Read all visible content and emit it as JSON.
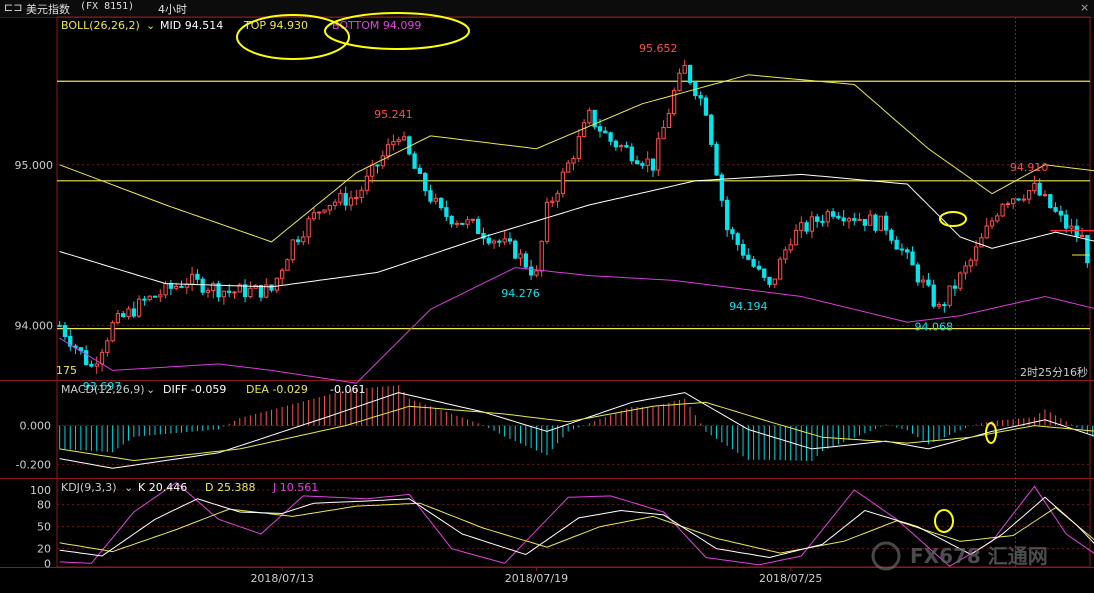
{
  "window": {
    "title": "美元指数",
    "code": "(FX 8151)",
    "period": "4小时",
    "back_icon": "back-arrow-icon",
    "close_icon": "close-icon"
  },
  "colors": {
    "up": "#ff4d4d",
    "down": "#00e5ee",
    "mid": "#ffffff",
    "upper": "#e8e84a",
    "lower": "#d93bd9",
    "hline": "#e8e84a",
    "annotation": "#ffff00"
  },
  "boll": {
    "label": "BOLL(26,26,2)",
    "mid_text": "MID 94.514",
    "top_text": "TOP 94.930",
    "bottom_text": "BOTTOM 94.099"
  },
  "macd": {
    "label": "MACD(12,26,9)",
    "diff_text": "DIFF -0.059",
    "dea_text": "DEA -0.029",
    "macd_text": "-0.061"
  },
  "kdj": {
    "label": "KDJ(9,3,3)",
    "k_text": "K 20.446",
    "d_text": "D 25.388",
    "j_text": "J 10.561"
  },
  "countdown": "2时25分16秒",
  "corner_label": "175",
  "watermark": "FX678 汇通网",
  "chart_data": [
    {
      "type": "candlestick",
      "title": "",
      "y_ticks": [
        "95.000",
        "94.000"
      ],
      "y_tick_values": [
        95.0,
        94.0
      ],
      "ylim": [
        93.66,
        95.92
      ],
      "x_ticks": [
        "2018/07/13",
        "2018/07/19",
        "2018/07/25"
      ],
      "x_tick_index": [
        42,
        90,
        138
      ],
      "num_bars": 195,
      "anchors": [
        [
          0,
          94.0
        ],
        [
          6,
          93.74
        ],
        [
          10,
          94.0
        ],
        [
          16,
          94.15
        ],
        [
          24,
          94.28
        ],
        [
          32,
          94.21
        ],
        [
          40,
          94.22
        ],
        [
          44,
          94.52
        ],
        [
          50,
          94.76
        ],
        [
          56,
          94.8
        ],
        [
          64,
          95.2
        ],
        [
          68,
          94.9
        ],
        [
          72,
          94.7
        ],
        [
          78,
          94.62
        ],
        [
          86,
          94.46
        ],
        [
          90,
          94.31
        ],
        [
          92,
          94.72
        ],
        [
          96,
          95.0
        ],
        [
          100,
          95.3
        ],
        [
          104,
          95.15
        ],
        [
          112,
          95.0
        ],
        [
          116,
          95.45
        ],
        [
          118,
          95.6
        ],
        [
          122,
          95.35
        ],
        [
          126,
          94.6
        ],
        [
          134,
          94.23
        ],
        [
          138,
          94.55
        ],
        [
          146,
          94.72
        ],
        [
          156,
          94.62
        ],
        [
          166,
          94.1
        ],
        [
          172,
          94.4
        ],
        [
          178,
          94.78
        ],
        [
          184,
          94.85
        ],
        [
          190,
          94.62
        ],
        [
          200,
          94.35
        ],
        [
          208,
          94.37
        ]
      ],
      "close_count": 195,
      "last_close": 94.39,
      "high_labels": [
        {
          "text": "95.241",
          "index": 63,
          "value": 95.241
        },
        {
          "text": "95.652",
          "index": 113,
          "value": 95.652
        },
        {
          "text": "94.910",
          "index": 183,
          "value": 94.91
        }
      ],
      "low_labels": [
        {
          "text": "93.697",
          "index": 8,
          "value": 93.697
        },
        {
          "text": "94.276",
          "index": 87,
          "value": 94.276
        },
        {
          "text": "94.194",
          "index": 130,
          "value": 94.194
        },
        {
          "text": "94.068",
          "index": 165,
          "value": 94.068
        }
      ],
      "horizontal_lines": [
        95.52,
        94.9,
        93.98
      ],
      "red_level": {
        "value": 94.59,
        "from_index": 187,
        "to_index": 203
      },
      "boll_mid_anchors": [
        [
          0,
          94.46
        ],
        [
          20,
          94.26
        ],
        [
          40,
          94.24
        ],
        [
          60,
          94.33
        ],
        [
          80,
          94.55
        ],
        [
          100,
          94.75
        ],
        [
          120,
          94.9
        ],
        [
          140,
          94.94
        ],
        [
          160,
          94.88
        ],
        [
          170,
          94.55
        ],
        [
          176,
          94.48
        ],
        [
          188,
          94.58
        ],
        [
          196,
          94.52
        ]
      ],
      "boll_upper_anchors": [
        [
          0,
          95.0
        ],
        [
          20,
          94.75
        ],
        [
          40,
          94.52
        ],
        [
          56,
          94.95
        ],
        [
          70,
          95.18
        ],
        [
          90,
          95.1
        ],
        [
          110,
          95.38
        ],
        [
          130,
          95.56
        ],
        [
          150,
          95.5
        ],
        [
          164,
          95.1
        ],
        [
          176,
          94.82
        ],
        [
          186,
          95.0
        ],
        [
          196,
          94.96
        ]
      ],
      "boll_lower_anchors": [
        [
          0,
          93.92
        ],
        [
          10,
          93.72
        ],
        [
          30,
          93.76
        ],
        [
          40,
          93.72
        ],
        [
          56,
          93.64
        ],
        [
          70,
          94.1
        ],
        [
          86,
          94.36
        ],
        [
          100,
          94.31
        ],
        [
          116,
          94.28
        ],
        [
          140,
          94.18
        ],
        [
          160,
          94.02
        ],
        [
          170,
          94.06
        ],
        [
          186,
          94.18
        ],
        [
          196,
          94.1
        ]
      ]
    },
    {
      "type": "macd",
      "title": "",
      "y_ticks": [
        "0.000",
        "-0.200"
      ],
      "y_tick_values": [
        0.0,
        -0.2
      ],
      "ylim": [
        -0.27,
        0.23
      ],
      "diff_anchors": [
        [
          0,
          -0.17
        ],
        [
          10,
          -0.22
        ],
        [
          30,
          -0.14
        ],
        [
          50,
          0.04
        ],
        [
          64,
          0.17
        ],
        [
          80,
          0.07
        ],
        [
          92,
          -0.03
        ],
        [
          108,
          0.12
        ],
        [
          118,
          0.17
        ],
        [
          130,
          -0.02
        ],
        [
          142,
          -0.12
        ],
        [
          156,
          -0.08
        ],
        [
          164,
          -0.12
        ],
        [
          176,
          -0.03
        ],
        [
          186,
          0.03
        ],
        [
          196,
          -0.06
        ]
      ],
      "dea_anchors": [
        [
          0,
          -0.12
        ],
        [
          14,
          -0.18
        ],
        [
          34,
          -0.12
        ],
        [
          54,
          0.0
        ],
        [
          66,
          0.1
        ],
        [
          84,
          0.06
        ],
        [
          96,
          0.02
        ],
        [
          112,
          0.1
        ],
        [
          122,
          0.12
        ],
        [
          134,
          0.02
        ],
        [
          144,
          -0.06
        ],
        [
          160,
          -0.09
        ],
        [
          172,
          -0.06
        ],
        [
          184,
          0.0
        ],
        [
          196,
          -0.03
        ]
      ]
    },
    {
      "type": "kdj",
      "title": "",
      "y_ticks": [
        "100",
        "80",
        "50",
        "20",
        "0"
      ],
      "y_tick_values": [
        100,
        80,
        50,
        20,
        0
      ],
      "ylim": [
        -5,
        115
      ],
      "k_anchors": [
        [
          0,
          18
        ],
        [
          8,
          10
        ],
        [
          18,
          60
        ],
        [
          26,
          88
        ],
        [
          34,
          70
        ],
        [
          42,
          68
        ],
        [
          48,
          82
        ],
        [
          58,
          85
        ],
        [
          66,
          88
        ],
        [
          76,
          40
        ],
        [
          88,
          12
        ],
        [
          98,
          62
        ],
        [
          106,
          72
        ],
        [
          114,
          66
        ],
        [
          124,
          20
        ],
        [
          134,
          8
        ],
        [
          144,
          26
        ],
        [
          152,
          72
        ],
        [
          162,
          50
        ],
        [
          172,
          12
        ],
        [
          178,
          40
        ],
        [
          186,
          90
        ],
        [
          192,
          52
        ],
        [
          196,
          22
        ]
      ],
      "d_anchors": [
        [
          0,
          28
        ],
        [
          10,
          16
        ],
        [
          22,
          46
        ],
        [
          32,
          74
        ],
        [
          44,
          64
        ],
        [
          56,
          78
        ],
        [
          68,
          82
        ],
        [
          80,
          48
        ],
        [
          92,
          22
        ],
        [
          102,
          50
        ],
        [
          112,
          64
        ],
        [
          124,
          34
        ],
        [
          136,
          14
        ],
        [
          148,
          30
        ],
        [
          158,
          58
        ],
        [
          170,
          30
        ],
        [
          180,
          38
        ],
        [
          188,
          76
        ],
        [
          196,
          28
        ]
      ],
      "j_anchors": [
        [
          0,
          2
        ],
        [
          6,
          0
        ],
        [
          14,
          70
        ],
        [
          22,
          110
        ],
        [
          30,
          60
        ],
        [
          38,
          40
        ],
        [
          46,
          92
        ],
        [
          58,
          88
        ],
        [
          66,
          94
        ],
        [
          74,
          20
        ],
        [
          84,
          0
        ],
        [
          96,
          90
        ],
        [
          104,
          92
        ],
        [
          114,
          70
        ],
        [
          122,
          8
        ],
        [
          132,
          -2
        ],
        [
          140,
          10
        ],
        [
          150,
          100
        ],
        [
          158,
          60
        ],
        [
          168,
          -4
        ],
        [
          176,
          30
        ],
        [
          184,
          105
        ],
        [
          190,
          40
        ],
        [
          196,
          10
        ]
      ]
    }
  ]
}
